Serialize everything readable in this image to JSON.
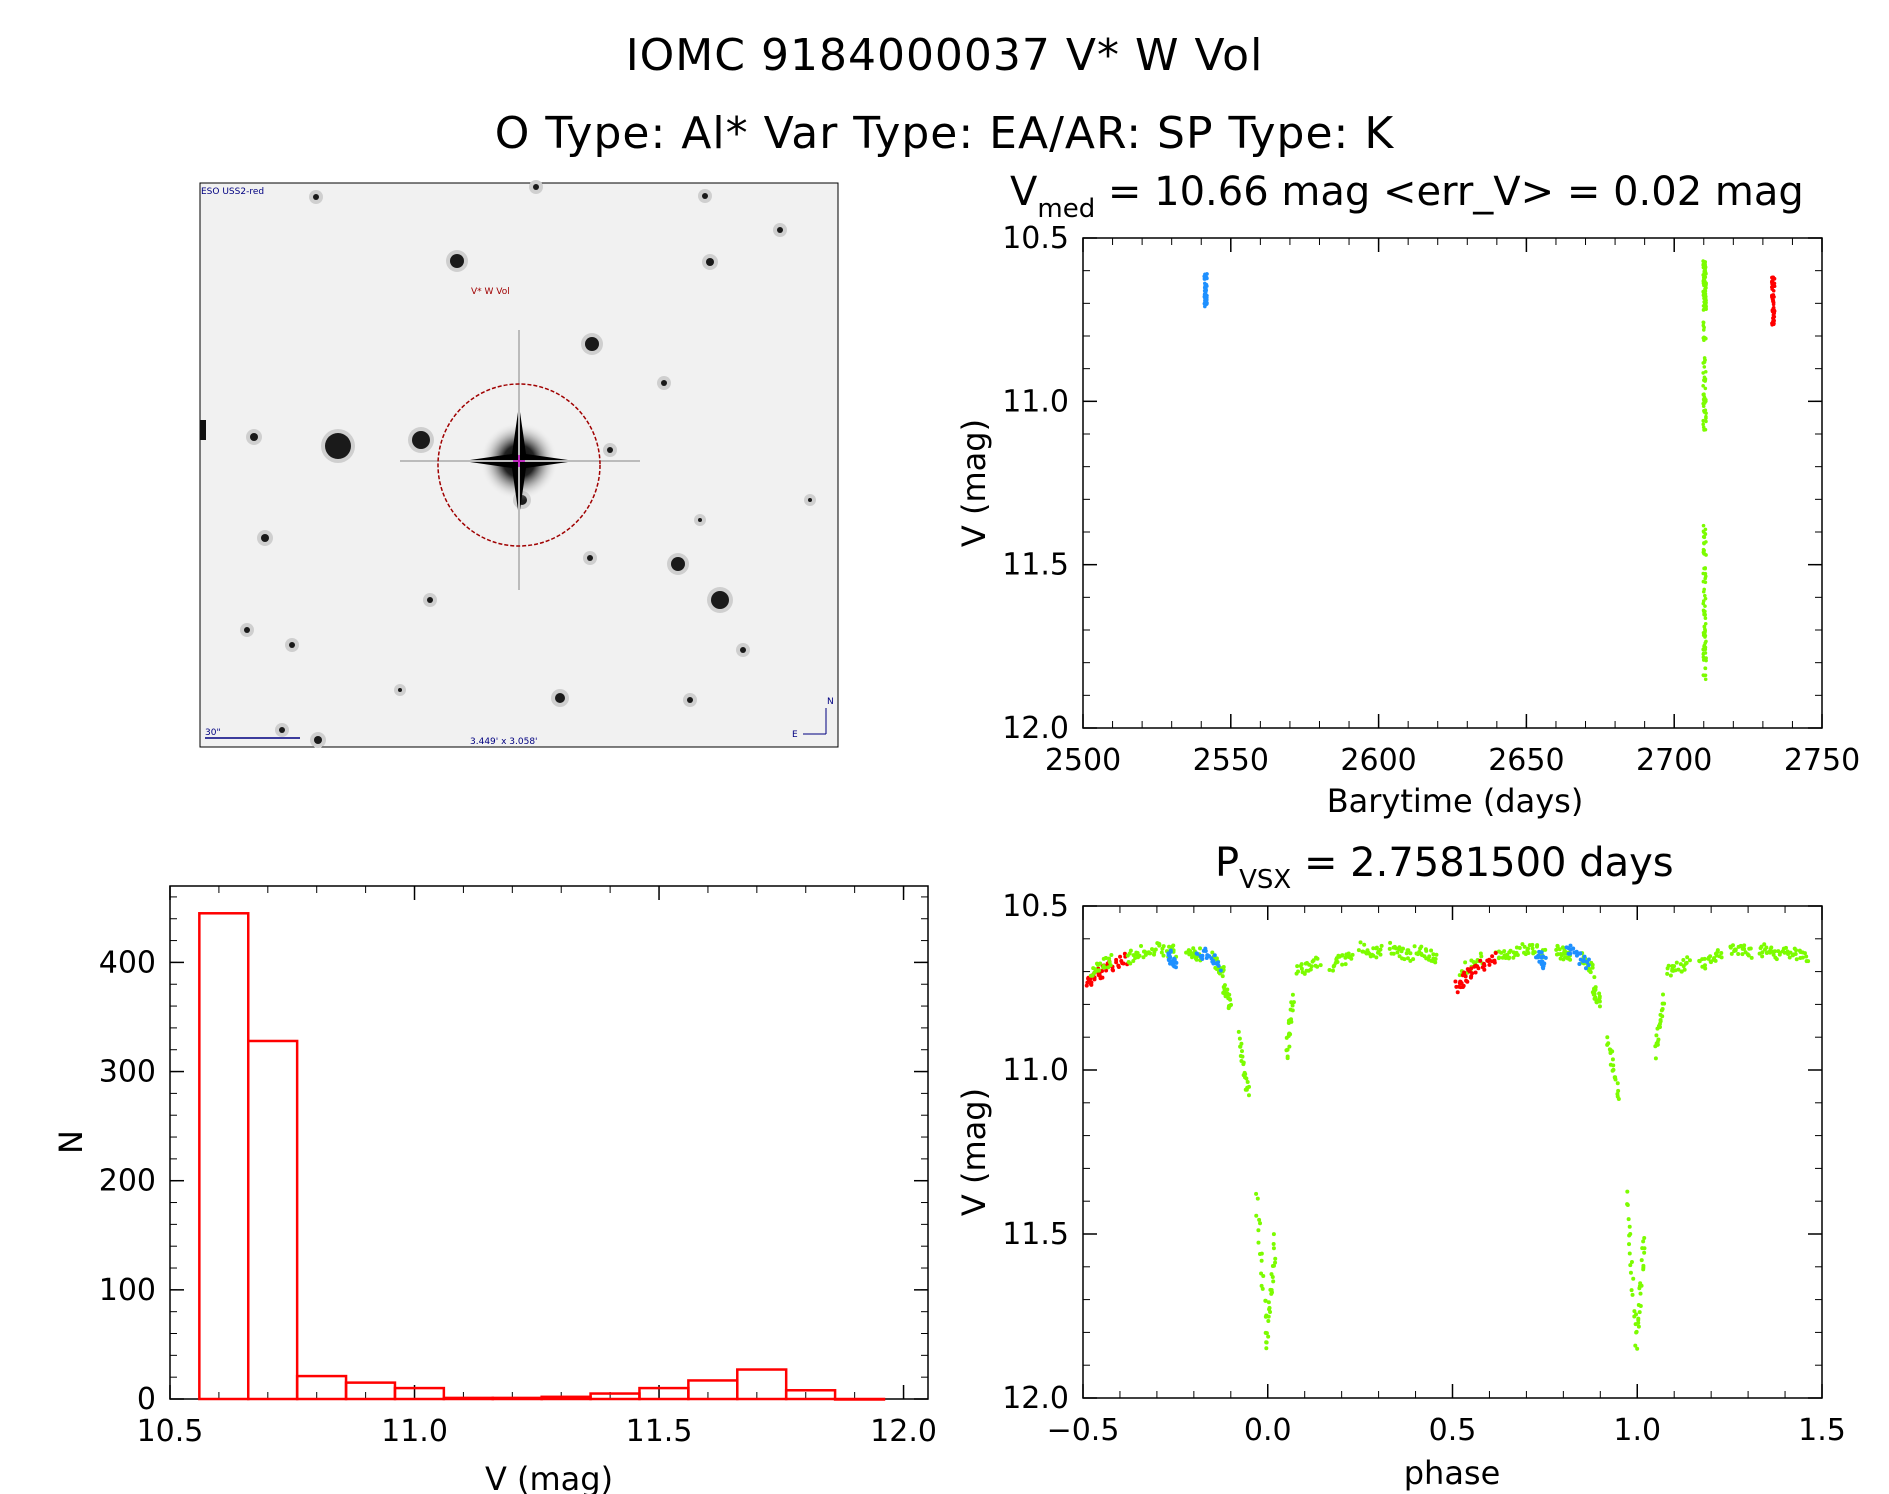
{
  "header": {
    "title_line1": "IOMC 9184000037    V* W Vol",
    "title_line2": "O Type: Al*  Var Type: EA/AR:  SP Type: K"
  },
  "finder": {
    "survey_label": "ESO USS2-red",
    "target_label": "V* W Vol",
    "scale_label": "30\"",
    "fov_label": "3.449' x 3.058'",
    "north_label": "N",
    "east_label": "E"
  },
  "chart_data": [
    {
      "id": "lightcurve",
      "type": "scatter",
      "title_main": "V",
      "title_sub": "med",
      "title_rest": " = 10.66 mag <err_V> = 0.02 mag",
      "xlabel": "Barytime (days)",
      "ylabel": "V (mag)",
      "xlim": [
        2500,
        2750
      ],
      "ylim": [
        12.0,
        10.5
      ],
      "xticks": [
        "2500",
        "2550",
        "2600",
        "2650",
        "2700",
        "2750"
      ],
      "yticks": [
        "10.5",
        "11.0",
        "11.5",
        "12.0"
      ],
      "series": [
        {
          "name": "blue",
          "color": "#1e90ff",
          "x": 2541.5,
          "ymin": 10.61,
          "ymax": 10.71
        },
        {
          "name": "green",
          "color": "#7cfc00",
          "x": 2710.3,
          "ymin": 10.57,
          "ymax": 11.86
        },
        {
          "name": "red",
          "color": "#ff0000",
          "x": 2733.5,
          "ymin": 10.62,
          "ymax": 10.77
        }
      ]
    },
    {
      "id": "histogram",
      "type": "bar",
      "xlabel": "V (mag)",
      "ylabel": "N",
      "xlim": [
        10.5,
        12.05
      ],
      "ylim": [
        0,
        470
      ],
      "xticks": [
        "10.5",
        "11.0",
        "11.5",
        "12.0"
      ],
      "yticks": [
        "0",
        "100",
        "200",
        "300",
        "400"
      ],
      "color": "#ff0000",
      "bin_edges": [
        10.56,
        10.66,
        10.76,
        10.86,
        10.96,
        11.06,
        11.16,
        11.26,
        11.36,
        11.46,
        11.56,
        11.66,
        11.76,
        11.86,
        11.96
      ],
      "counts": [
        445,
        328,
        21,
        15,
        10,
        1,
        1,
        2,
        5,
        10,
        17,
        27,
        8,
        0
      ]
    },
    {
      "id": "phased",
      "type": "scatter",
      "title_main": "P",
      "title_sub": "VSX",
      "title_rest": " = 2.7581500 days",
      "xlabel": "phase",
      "ylabel": "V (mag)",
      "xlim": [
        -0.5,
        1.5
      ],
      "ylim": [
        12.0,
        10.5
      ],
      "xticks": [
        "−0.5",
        "0.0",
        "0.5",
        "1.0",
        "1.5"
      ],
      "yticks": [
        "10.5",
        "11.0",
        "11.5",
        "12.0"
      ],
      "groups": [
        {
          "name": "red",
          "color": "#ff0000",
          "segments": [
            [
              -0.49,
              10.74,
              -0.45,
              10.7
            ],
            [
              -0.45,
              10.7,
              -0.38,
              10.66
            ]
          ]
        },
        {
          "name": "green",
          "color": "#7cfc00",
          "segments": [
            [
              -0.48,
              10.7,
              -0.42,
              10.66
            ],
            [
              -0.38,
              10.66,
              -0.32,
              10.63
            ],
            [
              -0.31,
              10.63,
              -0.25,
              10.64
            ],
            [
              -0.22,
              10.64,
              -0.18,
              10.65
            ],
            [
              -0.15,
              10.66,
              -0.12,
              10.7
            ],
            [
              -0.12,
              10.75,
              -0.1,
              10.8
            ],
            [
              -0.08,
              10.9,
              -0.05,
              11.08
            ],
            [
              -0.03,
              11.38,
              0.0,
              11.86
            ],
            [
              0.0,
              11.8,
              0.02,
              11.52
            ],
            [
              0.05,
              10.95,
              0.07,
              10.78
            ],
            [
              0.08,
              10.7,
              0.14,
              10.67
            ],
            [
              0.17,
              10.68,
              0.23,
              10.65
            ],
            [
              0.25,
              10.63,
              0.31,
              10.64
            ],
            [
              0.33,
              10.63,
              0.39,
              10.65
            ],
            [
              0.4,
              10.63,
              0.46,
              10.66
            ],
            [
              0.52,
              10.7,
              0.58,
              10.66
            ],
            [
              0.62,
              10.66,
              0.68,
              10.63
            ],
            [
              0.69,
              10.63,
              0.75,
              10.64
            ],
            [
              0.78,
              10.64,
              0.82,
              10.65
            ],
            [
              0.85,
              10.66,
              0.88,
              10.7
            ],
            [
              0.88,
              10.75,
              0.9,
              10.8
            ],
            [
              0.92,
              10.9,
              0.95,
              11.08
            ],
            [
              0.97,
              11.38,
              1.0,
              11.86
            ],
            [
              1.0,
              11.8,
              1.02,
              11.52
            ],
            [
              1.05,
              10.95,
              1.07,
              10.78
            ],
            [
              1.08,
              10.7,
              1.14,
              10.67
            ],
            [
              1.17,
              10.68,
              1.23,
              10.65
            ],
            [
              1.25,
              10.63,
              1.31,
              10.64
            ],
            [
              1.33,
              10.63,
              1.39,
              10.65
            ],
            [
              1.4,
              10.63,
              1.46,
              10.66
            ]
          ]
        },
        {
          "name": "blue",
          "color": "#1e90ff",
          "segments": [
            [
              -0.27,
              10.64,
              -0.25,
              10.68
            ],
            [
              -0.19,
              10.63,
              -0.13,
              10.68
            ],
            [
              0.73,
              10.64,
              0.75,
              10.68
            ],
            [
              0.81,
              10.63,
              0.87,
              10.68
            ]
          ]
        },
        {
          "name": "red2",
          "color": "#ff0000",
          "segments": [
            [
              0.51,
              10.75,
              0.55,
              10.7
            ],
            [
              0.55,
              10.7,
              0.62,
              10.66
            ]
          ]
        }
      ]
    }
  ]
}
